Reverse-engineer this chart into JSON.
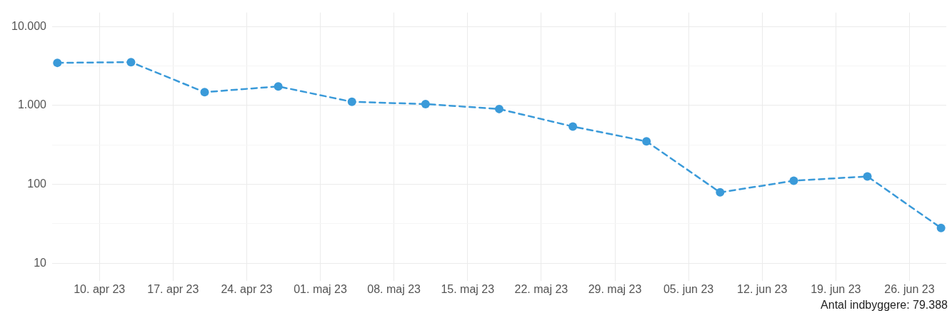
{
  "chart_data": {
    "type": "line",
    "log": "y",
    "grid": true,
    "marker": "circle",
    "line_style": "dashed",
    "legend": false,
    "x": [
      "--04-06",
      "--04-13",
      "--04-20",
      "--04-27",
      "--05-04",
      "--05-11",
      "--05-18",
      "--05-25",
      "--06-01",
      "--06-08",
      "--06-15",
      "--06-22",
      "--06-29"
    ],
    "series": [
      {
        "color": "#3a9ad9",
        "values": [
          3460,
          3530,
          1470,
          1740,
          1110,
          1040,
          900,
          540,
          350,
          79,
          111,
          126,
          28
        ]
      }
    ],
    "xlim": [
      "--04-05T12:00",
      "--06-29T12:00"
    ],
    "xticks": [
      {
        "value": "--04-10",
        "label": "10. apr 23"
      },
      {
        "value": "--04-17",
        "label": "17. apr 23"
      },
      {
        "value": "--04-24",
        "label": "24. apr 23"
      },
      {
        "value": "--05-01",
        "label": "01. maj 23"
      },
      {
        "value": "--05-08",
        "label": "08. maj 23"
      },
      {
        "value": "--05-15",
        "label": "15. maj 23"
      },
      {
        "value": "--05-22",
        "label": "22. maj 23"
      },
      {
        "value": "--05-29",
        "label": "29. maj 23"
      },
      {
        "value": "--06-05",
        "label": "05. jun 23"
      },
      {
        "value": "--06-12",
        "label": "12. jun 23"
      },
      {
        "value": "--06-19",
        "label": "19. jun 23"
      },
      {
        "value": "--06-26",
        "label": "26. jun 23"
      }
    ],
    "ylim": [
      6,
      15000
    ],
    "yticks": [
      {
        "value": 10,
        "label": "10"
      },
      {
        "value": 31.6,
        "label": null
      },
      {
        "value": 100,
        "label": "100"
      },
      {
        "value": 316,
        "label": null
      },
      {
        "value": 1000,
        "label": "1.000"
      },
      {
        "value": 3160,
        "label": null
      },
      {
        "value": 10000,
        "label": "10.000"
      }
    ],
    "annotations": [
      "Antal indbyggere: 79.388"
    ]
  }
}
